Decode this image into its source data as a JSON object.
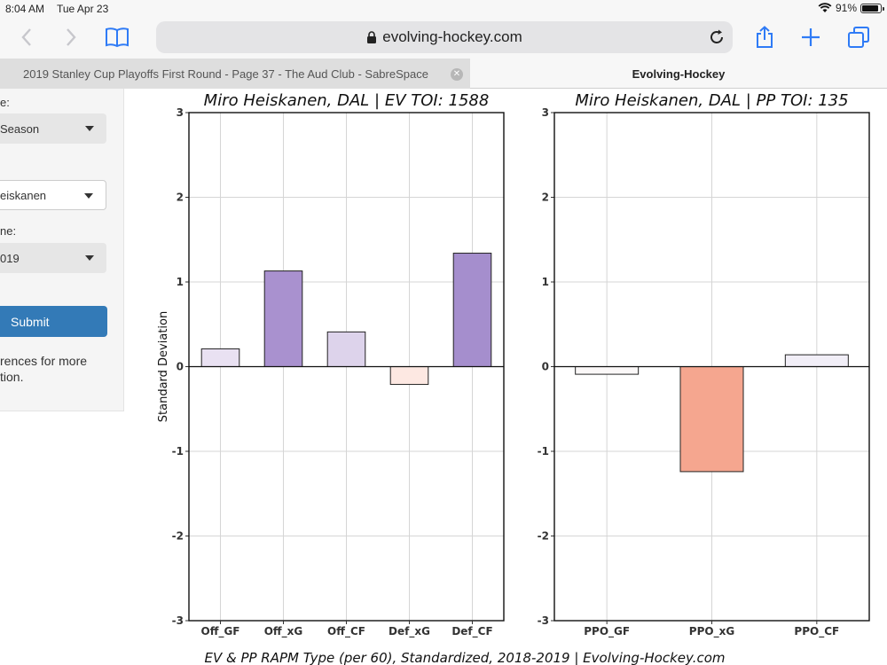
{
  "status_bar": {
    "time": "8:04 AM",
    "date": "Tue Apr 23",
    "battery": "91%",
    "battery_level": 0.91
  },
  "browser": {
    "url": "evolving-hockey.com",
    "tabs": [
      {
        "label": "2019 Stanley Cup Playoffs First Round - Page 37 - The Aud Club - SabreSpace",
        "active": false
      },
      {
        "label": "Evolving-Hockey",
        "active": true
      }
    ]
  },
  "sidebar": {
    "label1": "e:",
    "select1": "Season",
    "select2": "eiskanen",
    "label3": "ne:",
    "select3": "019",
    "submit_label": "Submit",
    "note_line1": "rences for more",
    "note_line2": "tion."
  },
  "chart_data": [
    {
      "type": "bar",
      "title": "Miro Heiskanen, DAL  |  EV TOI: 1588",
      "categories": [
        "Off_GF",
        "Off_xG",
        "Off_CF",
        "Def_xG",
        "Def_CF"
      ],
      "values": [
        0.21,
        1.13,
        0.41,
        -0.21,
        1.34
      ],
      "colors": [
        "#e9e1f2",
        "#a991cf",
        "#ddd3eb",
        "#fde8e2",
        "#a58ecd"
      ],
      "ylabel": "Standard Deviation",
      "ylim": [
        -3,
        3
      ],
      "yticks": [
        -3,
        -2,
        -1,
        0,
        1,
        2,
        3
      ],
      "grid": true
    },
    {
      "type": "bar",
      "title": "Miro Heiskanen, DAL  |  PP TOI: 135",
      "categories": [
        "PPO_GF",
        "PPO_xG",
        "PPO_CF"
      ],
      "values": [
        -0.09,
        -1.24,
        0.14
      ],
      "colors": [
        "#fbf8f8",
        "#f5a68f",
        "#f1eef7"
      ],
      "ylabel": "",
      "ylim": [
        -3,
        3
      ],
      "yticks": [
        -3,
        -2,
        -1,
        0,
        1,
        2,
        3
      ],
      "grid": true
    }
  ],
  "caption": "EV & PP RAPM Type (per 60), Standardized, 2018-2019    |    Evolving-Hockey.com"
}
